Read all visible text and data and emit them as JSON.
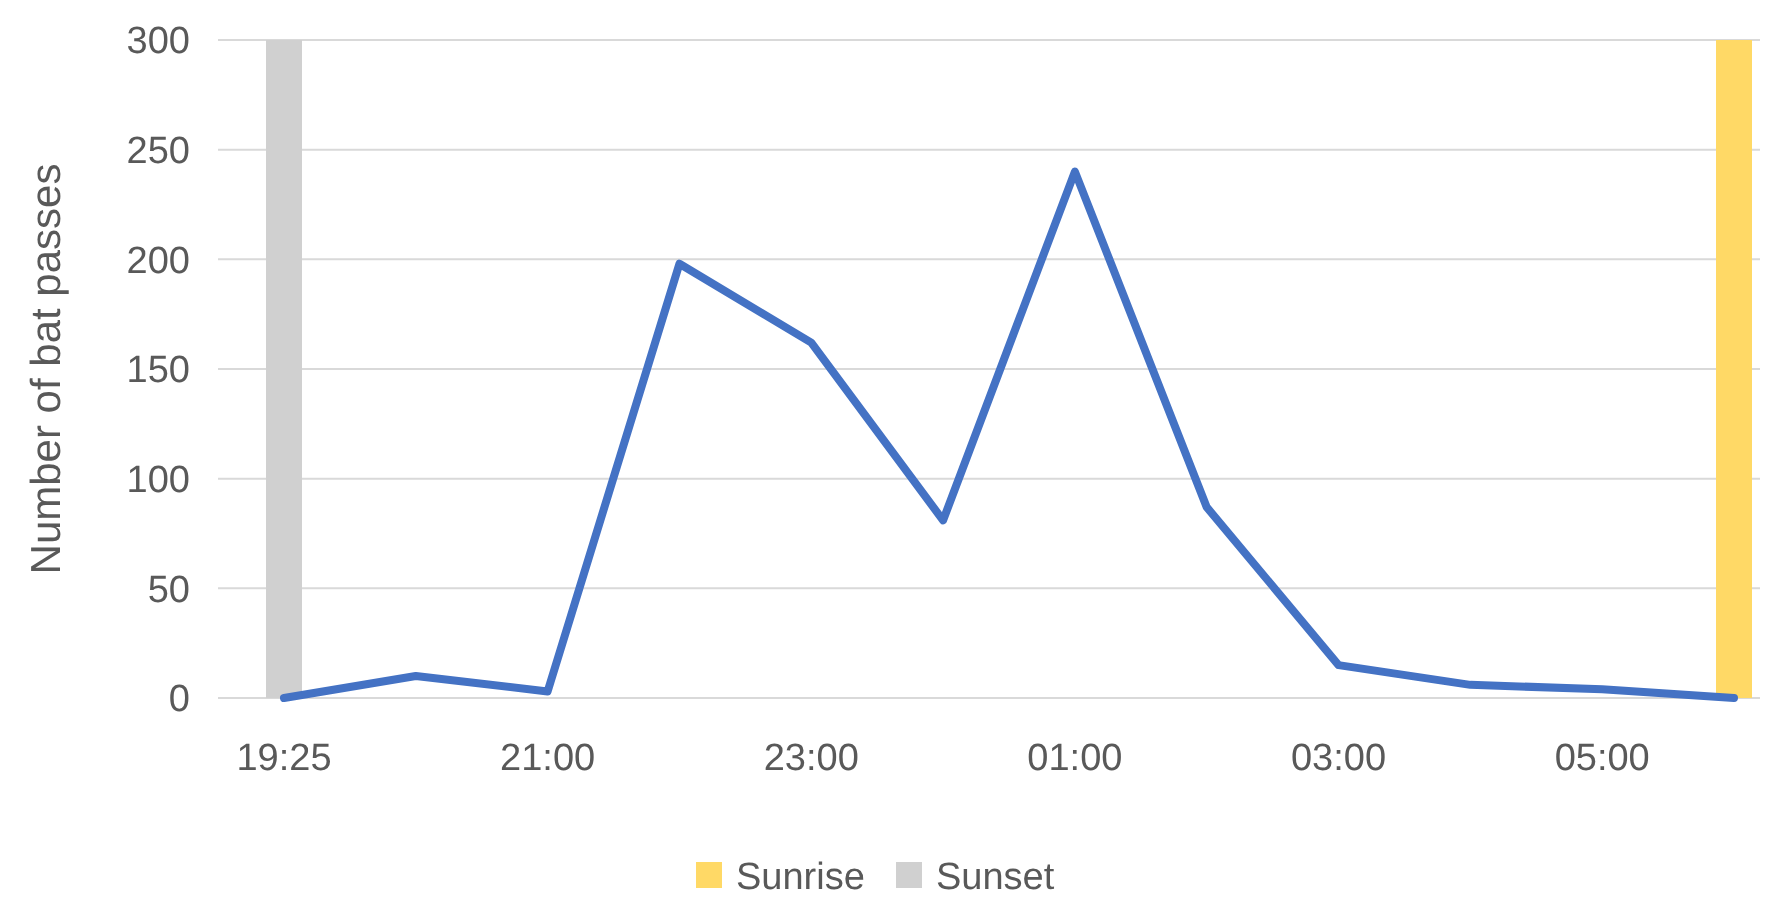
{
  "chart_data": {
    "type": "line",
    "ylabel": "Number of bat passes",
    "categories": [
      "19:25",
      null,
      "21:00",
      null,
      "23:00",
      null,
      "01:00",
      null,
      "03:00",
      null,
      "05:00",
      null
    ],
    "series": [
      {
        "type": "bar",
        "name": "Sunrise",
        "color": "#ffd966",
        "values": [
          null,
          null,
          null,
          null,
          null,
          null,
          null,
          null,
          null,
          null,
          null,
          300
        ]
      },
      {
        "type": "bar",
        "name": "Sunset",
        "color": "#d0d0d0",
        "values": [
          300,
          null,
          null,
          null,
          null,
          null,
          null,
          null,
          null,
          null,
          null,
          null
        ]
      },
      {
        "color": "#4472c4",
        "values": [
          0,
          10,
          3,
          198,
          162,
          81,
          240,
          87,
          15,
          6,
          4,
          0
        ]
      }
    ],
    "ylim": [
      0,
      300
    ],
    "yticks": [
      0,
      50,
      100,
      150,
      200,
      250,
      300
    ],
    "grid": "y",
    "legend": "bottom",
    "marker": "none",
    "line_style": "solid"
  }
}
